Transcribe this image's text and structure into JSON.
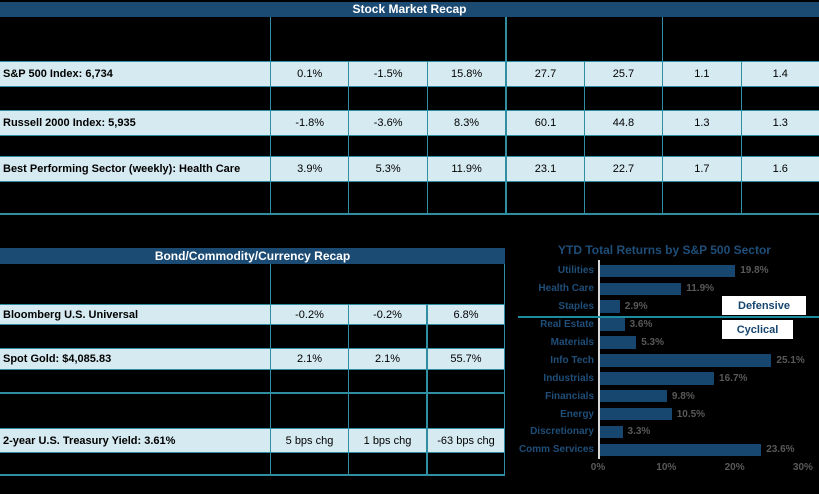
{
  "colors": {
    "background": "#000000",
    "header_bar": "#1B4A73",
    "header_text": "#FFFFFF",
    "row_fill": "#D6EAF1",
    "grid_teal": "#2F8EA1",
    "bar_fill": "#17466F",
    "chart_title_text": "#1F4E79",
    "value_label_text": "#595959",
    "axis_line": "#D9D9D9",
    "legend_bg": "#FFFFFF"
  },
  "chart_data": [
    {
      "type": "table",
      "title": "Stock Market Recap",
      "rows": [
        {
          "label": "S&P 500 Index: 6,734",
          "values": [
            "0.1%",
            "-1.5%",
            "15.8%",
            "27.7",
            "25.7",
            "1.1",
            "1.4"
          ]
        },
        {
          "label": "Russell 2000 Index: 5,935",
          "values": [
            "-1.8%",
            "-3.6%",
            "8.3%",
            "60.1",
            "44.8",
            "1.3",
            "1.3"
          ]
        },
        {
          "label": "Best Performing Sector (weekly): Health Care",
          "values": [
            "3.9%",
            "5.3%",
            "11.9%",
            "23.1",
            "22.7",
            "1.7",
            "1.6"
          ]
        }
      ]
    },
    {
      "type": "table",
      "title": "Bond/Commodity/Currency Recap",
      "rows": [
        {
          "label": "Bloomberg U.S. Universal",
          "values": [
            "-0.2%",
            "-0.2%",
            "6.8%"
          ]
        },
        {
          "label": "Spot Gold: $4,085.83",
          "values": [
            "2.1%",
            "2.1%",
            "55.7%"
          ]
        },
        {
          "label": "2-year U.S. Treasury Yield: 3.61%",
          "values": [
            "5 bps chg",
            "1 bps chg",
            "-63 bps chg"
          ]
        }
      ]
    },
    {
      "type": "bar",
      "orientation": "horizontal",
      "title": "YTD Total Returns by S&P 500 Sector",
      "categories": [
        "Utilities",
        "Health Care",
        "Staples",
        "Real Estate",
        "Materials",
        "Info Tech",
        "Industrials",
        "Financials",
        "Energy",
        "Discretionary",
        "Comm Services"
      ],
      "values": [
        19.8,
        11.9,
        2.9,
        3.6,
        5.3,
        25.1,
        16.7,
        9.8,
        10.5,
        3.3,
        23.6
      ],
      "value_suffix": "%",
      "xlim": [
        0,
        30
      ],
      "xtick_labels": [
        "0%",
        "10%",
        "20%",
        "30%"
      ],
      "legend": [
        "Defensive",
        "Cyclical"
      ],
      "legend_position": "right, between Staples and Real Estate rows"
    }
  ]
}
